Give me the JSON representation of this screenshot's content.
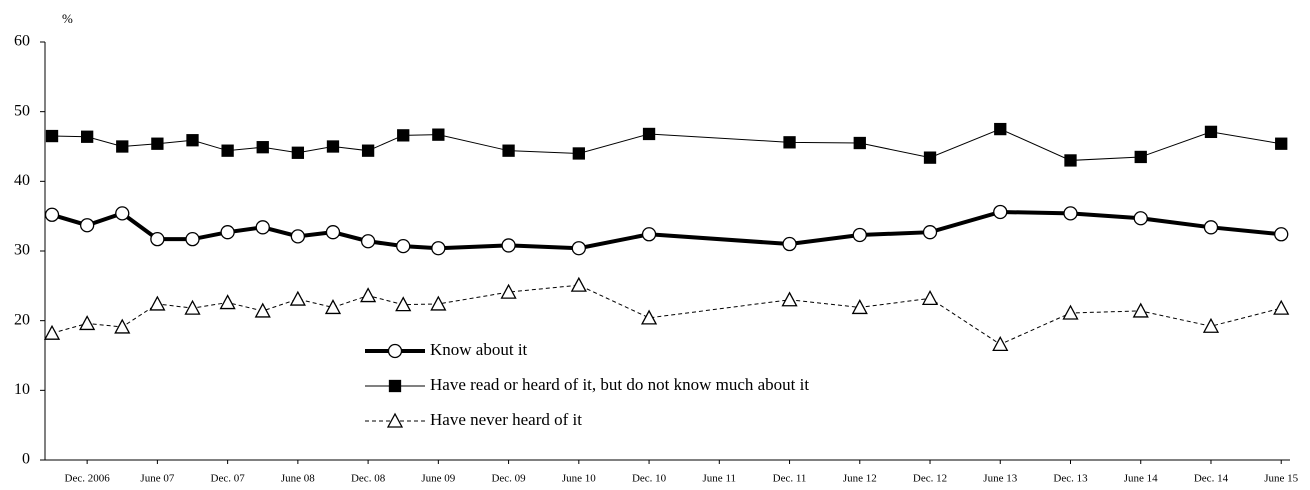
{
  "chart_data": {
    "type": "line",
    "ylabel": "%",
    "x": [
      0,
      1,
      2,
      3,
      4,
      5,
      6,
      7,
      8,
      9,
      10,
      11,
      13,
      15,
      17,
      21,
      23,
      25,
      27,
      29,
      31,
      33,
      35
    ],
    "xlim": [
      -0.2,
      35.25
    ],
    "xticks": [
      {
        "value": 1,
        "label": "Dec. 2006"
      },
      {
        "value": 3,
        "label": "June 07"
      },
      {
        "value": 5,
        "label": "Dec. 07"
      },
      {
        "value": 7,
        "label": "June 08"
      },
      {
        "value": 9,
        "label": "Dec. 08"
      },
      {
        "value": 11,
        "label": "June 09"
      },
      {
        "value": 13,
        "label": "Dec. 09"
      },
      {
        "value": 15,
        "label": "June 10"
      },
      {
        "value": 17,
        "label": "Dec. 10"
      },
      {
        "value": 19,
        "label": "June 11"
      },
      {
        "value": 21,
        "label": "Dec. 11"
      },
      {
        "value": 23,
        "label": "June 12"
      },
      {
        "value": 25,
        "label": "Dec. 12"
      },
      {
        "value": 27,
        "label": "June 13"
      },
      {
        "value": 29,
        "label": "Dec. 13"
      },
      {
        "value": 31,
        "label": "June 14"
      },
      {
        "value": 33,
        "label": "Dec. 14"
      },
      {
        "value": 35,
        "label": "June 15"
      }
    ],
    "ylim": [
      0,
      60
    ],
    "yticks": [
      0,
      10,
      20,
      30,
      40,
      50,
      60
    ],
    "grid": false,
    "series": [
      {
        "name": "Know about it",
        "color": "#000000",
        "line_width": 4,
        "dashed": false,
        "marker": "circle",
        "values": [
          35.2,
          33.7,
          35.4,
          31.7,
          31.7,
          32.7,
          33.4,
          32.1,
          32.7,
          31.4,
          30.7,
          30.4,
          30.8,
          30.4,
          32.4,
          31.0,
          32.3,
          32.7,
          35.6,
          35.4,
          34.7,
          33.4,
          32.4
        ]
      },
      {
        "name": "Have read or heard of it, but do not know much about it",
        "color": "#000000",
        "line_width": 1,
        "dashed": false,
        "marker": "square",
        "values": [
          46.5,
          46.4,
          45.0,
          45.4,
          45.9,
          44.4,
          44.9,
          44.1,
          45.0,
          44.4,
          46.6,
          46.7,
          44.4,
          44.0,
          46.8,
          45.6,
          45.5,
          43.4,
          47.5,
          43.0,
          43.5,
          47.1,
          45.4
        ]
      },
      {
        "name": "Have never heard of it",
        "color": "#000000",
        "line_width": 1,
        "dashed": true,
        "marker": "triangle",
        "values": [
          18.2,
          19.6,
          19.1,
          22.4,
          21.8,
          22.6,
          21.4,
          23.1,
          21.9,
          23.6,
          22.3,
          22.4,
          24.1,
          25.1,
          20.4,
          23.0,
          21.9,
          23.2,
          16.6,
          21.1,
          21.4,
          19.2,
          21.8
        ]
      }
    ]
  }
}
